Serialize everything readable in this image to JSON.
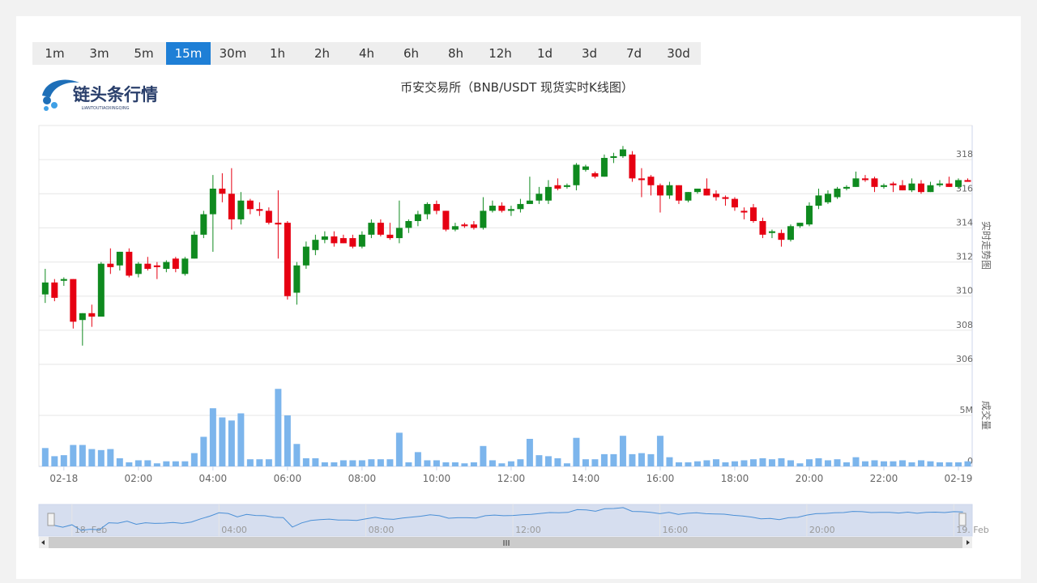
{
  "buttons": {
    "items": [
      "1m",
      "3m",
      "5m",
      "15m",
      "30m",
      "1h",
      "2h",
      "4h",
      "6h",
      "8h",
      "12h",
      "1d",
      "3d",
      "7d",
      "30d"
    ],
    "active": 3
  },
  "logo": {
    "text": "链头条行情",
    "subtext": "LIANTOUTIAOXINGQING"
  },
  "chart_data": {
    "type": "candlestick",
    "title": "币安交易所（BNB/USDT 现货实时K线图）",
    "ylabel": "实时走势图",
    "y2label": "成交量",
    "x": [
      -0.5,
      -0.25,
      0,
      0.25,
      0.5,
      0.75,
      1,
      1.25,
      1.5,
      1.75,
      2,
      2.25,
      2.5,
      2.75,
      3,
      3.25,
      3.5,
      3.75,
      4,
      4.25,
      4.5,
      4.75,
      5,
      5.25,
      5.5,
      5.75,
      6,
      6.25,
      6.5,
      6.75,
      7,
      7.25,
      7.5,
      7.75,
      8,
      8.25,
      8.5,
      8.75,
      9,
      9.25,
      9.5,
      9.75,
      10,
      10.25,
      10.5,
      10.75,
      11,
      11.25,
      11.5,
      11.75,
      12,
      12.25,
      12.5,
      12.75,
      13,
      13.25,
      13.5,
      13.75,
      14,
      14.25,
      14.5,
      14.75,
      15,
      15.25,
      15.5,
      15.75,
      16,
      16.25,
      16.5,
      16.75,
      17,
      17.25,
      17.5,
      17.75,
      18,
      18.25,
      18.5,
      18.75,
      19,
      19.25,
      19.5,
      19.75,
      20,
      20.25,
      20.5,
      20.75,
      21,
      21.25,
      21.5,
      21.75,
      22,
      22.25,
      22.5,
      22.75,
      23,
      23.25,
      23.5,
      23.75,
      24,
      24.25
    ],
    "xlim": [
      -0.67,
      24.37
    ],
    "xticks": [
      {
        "value": 0,
        "label": "02-18"
      },
      {
        "value": 2,
        "label": "02:00"
      },
      {
        "value": 4,
        "label": "04:00"
      },
      {
        "value": 6,
        "label": "06:00"
      },
      {
        "value": 8,
        "label": "08:00"
      },
      {
        "value": 10,
        "label": "10:00"
      },
      {
        "value": 12,
        "label": "12:00"
      },
      {
        "value": 14,
        "label": "14:00"
      },
      {
        "value": 16,
        "label": "16:00"
      },
      {
        "value": 18,
        "label": "18:00"
      },
      {
        "value": 20,
        "label": "20:00"
      },
      {
        "value": 22,
        "label": "22:00"
      },
      {
        "value": 24,
        "label": "02-19"
      }
    ],
    "ylim": [
      306,
      320
    ],
    "yticks": [
      306,
      308,
      310,
      312,
      314,
      316,
      318
    ],
    "y2lim": [
      0,
      10000000
    ],
    "y2ticks": [
      0,
      {
        "value": 5000000,
        "label": "5M"
      }
    ],
    "grid": true,
    "series": [
      {
        "type": "candlestick",
        "up_color": "#0f8a1f",
        "down_color": "#e60012",
        "open": [
          310.1,
          310.8,
          310.9,
          311.0,
          308.6,
          309.0,
          308.8,
          311.9,
          311.8,
          312.6,
          311.3,
          311.9,
          311.8,
          311.6,
          312.2,
          311.3,
          312.2,
          313.6,
          314.8,
          316.3,
          316.0,
          314.5,
          315.6,
          315.1,
          315.0,
          314.3,
          314.3,
          310.2,
          311.8,
          312.7,
          313.3,
          313.5,
          313.4,
          313.4,
          312.9,
          313.6,
          314.3,
          313.6,
          313.4,
          314.0,
          314.4,
          314.8,
          315.4,
          315.0,
          313.9,
          314.2,
          314.2,
          314.0,
          315.0,
          315.3,
          315.0,
          315.1,
          315.4,
          315.6,
          315.6,
          316.5,
          316.4,
          316.5,
          317.4,
          317.2,
          317.0,
          318.1,
          318.2,
          318.3,
          316.9,
          317.0,
          316.5,
          315.9,
          316.5,
          315.6,
          316.1,
          316.3,
          316.0,
          315.8,
          315.7,
          315.0,
          315.2,
          314.4,
          313.7,
          313.7,
          313.3,
          314.1,
          314.2,
          315.3,
          315.5,
          315.8,
          316.3,
          316.4,
          316.9,
          316.9,
          316.4,
          316.6,
          316.5,
          316.2,
          316.6,
          316.1,
          316.5,
          316.6,
          316.4,
          316.8
        ],
        "high": [
          311.6,
          311.0,
          311.1,
          311.0,
          309.0,
          309.5,
          312.0,
          312.8,
          312.6,
          312.8,
          312.0,
          312.3,
          312.0,
          312.1,
          312.3,
          312.3,
          313.8,
          315.0,
          317.1,
          317.2,
          317.5,
          316.1,
          315.7,
          315.5,
          315.2,
          316.2,
          314.4,
          312.0,
          313.2,
          313.6,
          313.8,
          313.8,
          313.6,
          313.6,
          313.8,
          314.5,
          314.5,
          314.3,
          315.6,
          314.5,
          315.0,
          315.5,
          315.6,
          315.0,
          314.3,
          314.3,
          314.4,
          315.8,
          315.6,
          315.5,
          315.3,
          315.7,
          317.0,
          316.4,
          316.8,
          316.9,
          316.6,
          317.8,
          317.7,
          317.3,
          318.3,
          318.4,
          318.8,
          318.5,
          317.5,
          317.1,
          316.6,
          316.7,
          316.5,
          316.1,
          316.3,
          316.9,
          316.2,
          315.9,
          315.8,
          315.2,
          315.4,
          314.6,
          313.9,
          313.9,
          314.2,
          314.3,
          315.5,
          316.3,
          316.2,
          316.4,
          316.5,
          317.3,
          317.1,
          317.0,
          316.6,
          316.7,
          316.8,
          316.9,
          316.8,
          316.7,
          316.8,
          317.0,
          316.9,
          316.9
        ],
        "low": [
          309.6,
          309.7,
          310.6,
          308.1,
          307.1,
          308.2,
          308.8,
          311.3,
          311.5,
          311.1,
          311.1,
          311.5,
          311.0,
          311.4,
          311.4,
          311.2,
          312.2,
          313.4,
          312.6,
          315.5,
          313.9,
          314.2,
          314.8,
          314.7,
          314.2,
          312.2,
          309.8,
          309.5,
          311.6,
          312.4,
          313.1,
          312.9,
          313.1,
          312.8,
          312.8,
          313.4,
          313.5,
          313.3,
          313.1,
          313.7,
          314.1,
          314.5,
          314.8,
          313.8,
          313.8,
          314.0,
          313.9,
          313.9,
          314.9,
          314.9,
          314.7,
          314.9,
          315.4,
          315.4,
          315.4,
          316.2,
          316.3,
          316.2,
          317.3,
          316.9,
          317.0,
          317.8,
          318.1,
          316.7,
          315.8,
          315.9,
          314.9,
          315.7,
          315.4,
          315.5,
          316.0,
          315.9,
          315.6,
          315.3,
          315.0,
          314.5,
          314.3,
          313.4,
          313.4,
          312.9,
          313.2,
          314.0,
          314.1,
          315.1,
          315.4,
          315.7,
          316.2,
          316.4,
          316.7,
          316.1,
          316.3,
          316.1,
          316.2,
          316.1,
          316.0,
          316.1,
          316.4,
          316.4,
          316.3,
          316.7
        ],
        "close": [
          310.8,
          309.9,
          311.0,
          308.5,
          309.0,
          308.8,
          311.9,
          311.7,
          312.6,
          311.2,
          311.9,
          311.6,
          311.7,
          312.0,
          311.6,
          312.2,
          313.6,
          314.8,
          316.3,
          316.0,
          314.5,
          315.6,
          315.1,
          315.0,
          314.3,
          314.2,
          310.0,
          311.8,
          312.9,
          313.3,
          313.5,
          313.1,
          313.1,
          312.9,
          313.6,
          314.3,
          313.6,
          313.4,
          314.0,
          314.4,
          314.8,
          315.4,
          315.0,
          313.9,
          314.1,
          314.1,
          314.0,
          315.0,
          315.3,
          315.0,
          315.1,
          315.4,
          315.6,
          316.0,
          316.4,
          316.3,
          316.5,
          317.7,
          317.6,
          317.0,
          318.1,
          318.2,
          318.6,
          316.9,
          316.8,
          316.5,
          315.9,
          316.5,
          315.6,
          316.1,
          316.3,
          315.9,
          315.8,
          315.7,
          315.2,
          314.9,
          314.4,
          313.6,
          313.8,
          313.3,
          314.1,
          314.3,
          315.3,
          315.9,
          316.0,
          316.3,
          316.4,
          316.9,
          316.8,
          316.4,
          316.5,
          316.5,
          316.2,
          316.6,
          316.1,
          316.5,
          316.6,
          316.4,
          316.8,
          316.7
        ]
      },
      {
        "type": "bar",
        "axis": "y2",
        "color": "#7cb5ec",
        "values": [
          1800000,
          1000000,
          1100000,
          2100000,
          2100000,
          1700000,
          1600000,
          1700000,
          800000,
          400000,
          600000,
          600000,
          300000,
          500000,
          500000,
          500000,
          1300000,
          2900000,
          5700000,
          4800000,
          4500000,
          5200000,
          700000,
          700000,
          700000,
          7600000,
          5000000,
          2200000,
          800000,
          800000,
          400000,
          400000,
          600000,
          600000,
          600000,
          700000,
          700000,
          700000,
          3300000,
          400000,
          1400000,
          600000,
          600000,
          400000,
          400000,
          300000,
          400000,
          2000000,
          600000,
          300000,
          500000,
          700000,
          2700000,
          1100000,
          1000000,
          800000,
          300000,
          2800000,
          700000,
          700000,
          1200000,
          1200000,
          3000000,
          1200000,
          1300000,
          1200000,
          3000000,
          900000,
          400000,
          400000,
          500000,
          600000,
          700000,
          400000,
          500000,
          600000,
          700000,
          800000,
          700000,
          800000,
          600000,
          300000,
          700000,
          800000,
          600000,
          700000,
          400000,
          900000,
          500000,
          600000,
          500000,
          500000,
          600000,
          400000,
          600000,
          500000,
          400000,
          400000,
          400000,
          500000
        ]
      }
    ],
    "navigator": {
      "xlim": [
        -0.9,
        24.5
      ],
      "ylim": [
        306,
        320
      ],
      "xticks": [
        {
          "value": 0,
          "label": "18. Feb"
        },
        {
          "value": 4,
          "label": "04:00"
        },
        {
          "value": 8,
          "label": "08:00"
        },
        {
          "value": 12,
          "label": "12:00"
        },
        {
          "value": 16,
          "label": "16:00"
        },
        {
          "value": 20,
          "label": "20:00"
        },
        {
          "value": 24,
          "label": "19. Feb"
        }
      ]
    }
  }
}
